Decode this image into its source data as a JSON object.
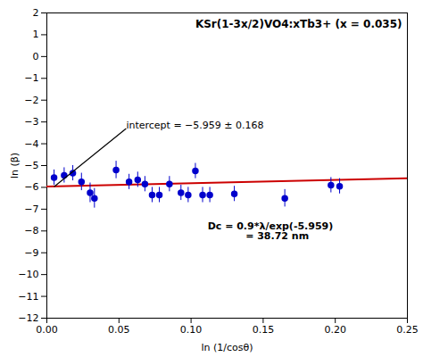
{
  "chart_data": {
    "type": "scatter",
    "title": "KSr(1-3x/2)VO4:xTb3+ (x = 0.035)",
    "xlabel": "ln (1/cosθ)",
    "ylabel": "ln (β)",
    "xlim": [
      0.0,
      0.25
    ],
    "ylim": [
      -12,
      2
    ],
    "xticks": [
      {
        "value": 0.0,
        "label": "0.00"
      },
      0.05,
      {
        "value": 0.1,
        "label": "0.10"
      },
      0.15,
      {
        "value": 0.2,
        "label": "0.20"
      },
      0.25
    ],
    "yticks": [
      2,
      1,
      0,
      -1,
      -2,
      -3,
      -4,
      -5,
      -6,
      -7,
      -8,
      -9,
      -10,
      -11,
      -12
    ],
    "grid": false,
    "x": [
      0.005,
      0.012,
      0.018,
      0.024,
      0.03,
      0.033,
      0.048,
      0.057,
      0.063,
      0.068,
      0.073,
      0.078,
      0.085,
      0.093,
      0.098,
      0.103,
      0.108,
      0.113,
      0.13,
      0.165,
      0.197,
      0.203
    ],
    "values": [
      -5.55,
      -5.45,
      -5.35,
      -5.75,
      -6.25,
      -6.5,
      -5.2,
      -5.75,
      -5.65,
      -5.85,
      -6.35,
      -6.35,
      -5.85,
      -6.25,
      -6.35,
      -5.25,
      -6.35,
      -6.35,
      -6.3,
      -6.5,
      -5.9,
      -5.95
    ],
    "yerr": [
      0.35,
      0.35,
      0.35,
      0.4,
      0.45,
      0.45,
      0.4,
      0.35,
      0.35,
      0.35,
      0.35,
      0.35,
      0.35,
      0.35,
      0.35,
      0.35,
      0.35,
      0.35,
      0.35,
      0.4,
      0.35,
      0.35
    ],
    "color": "#0000CC",
    "fit_line": {
      "x": [
        0.0,
        0.25
      ],
      "values": [
        -5.959,
        -5.584
      ],
      "color": "#CC0000"
    },
    "annotations": [
      {
        "text": "intercept = −5.959 ± 0.168",
        "x": 0.005,
        "y": -5.97,
        "text_x": 0.055,
        "text_y": -3.3
      },
      {
        "text": "Dc = 0.9*λ/exp(-5.959)\n    = 38.72 nm",
        "x": 0.155,
        "y": -7.6
      }
    ]
  }
}
